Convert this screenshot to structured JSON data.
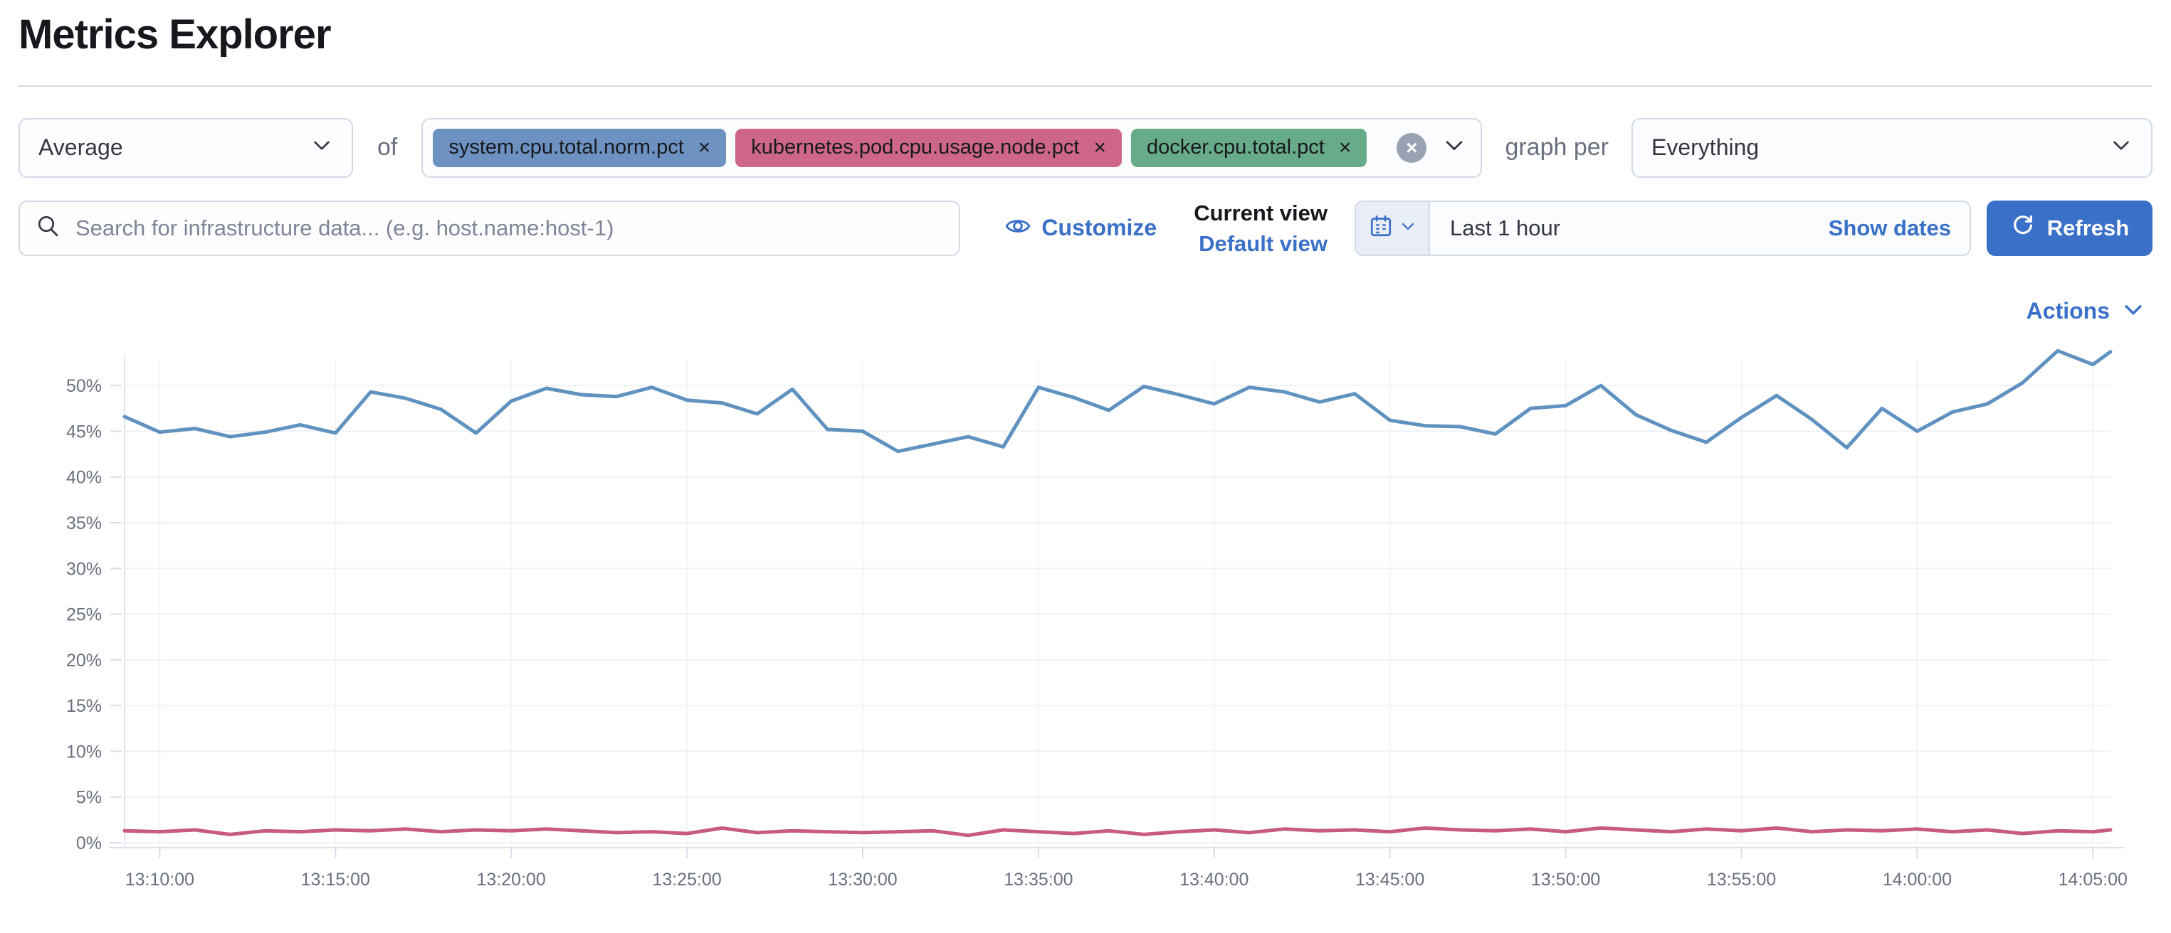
{
  "page": {
    "title": "Metrics Explorer"
  },
  "toolbar": {
    "aggregation": {
      "value": "Average"
    },
    "of_label": "of",
    "metrics": [
      {
        "label": "system.cpu.total.norm.pct",
        "color": "#6d92c1"
      },
      {
        "label": "kubernetes.pod.cpu.usage.node.pct",
        "color": "#ce6787"
      },
      {
        "label": "docker.cpu.total.pct",
        "color": "#67ab8a"
      }
    ],
    "clear_symbol": "x",
    "graph_per_label": "graph per",
    "group_by": {
      "value": "Everything"
    }
  },
  "search": {
    "placeholder": "Search for infrastructure data... (e.g. host.name:host-1)"
  },
  "view_controls": {
    "customize_label": "Customize",
    "current_view_label": "Current view",
    "view_name": "Default view"
  },
  "time_picker": {
    "range_label": "Last 1 hour",
    "show_dates_label": "Show dates",
    "refresh_label": "Refresh"
  },
  "actions_label": "Actions",
  "colors": {
    "link_blue": "#3a70c8",
    "border": "#d3dae6",
    "axis_text": "#69707d"
  },
  "chart_data": {
    "type": "line",
    "title": "",
    "xlabel": "",
    "ylabel": "",
    "grid": true,
    "legend": "none",
    "ylim": [
      0,
      55.8
    ],
    "y_tick_values": [
      0,
      5,
      10,
      15,
      20,
      25,
      30,
      35,
      40,
      45,
      50
    ],
    "y_tick_labels": [
      "0%",
      "5%",
      "10%",
      "15%",
      "20%",
      "25%",
      "30%",
      "35%",
      "40%",
      "45%",
      "50%"
    ],
    "x_ticks": [
      {
        "label": "13:10:00",
        "offset": 1
      },
      {
        "label": "13:15:00",
        "offset": 6
      },
      {
        "label": "13:20:00",
        "offset": 11
      },
      {
        "label": "13:25:00",
        "offset": 16
      },
      {
        "label": "13:30:00",
        "offset": 21
      },
      {
        "label": "13:35:00",
        "offset": 26
      },
      {
        "label": "13:40:00",
        "offset": 31
      },
      {
        "label": "13:45:00",
        "offset": 36
      },
      {
        "label": "13:50:00",
        "offset": 41
      },
      {
        "label": "13:55:00",
        "offset": 46
      },
      {
        "label": "14:00:00",
        "offset": 51
      },
      {
        "label": "14:05:00",
        "offset": 56
      }
    ],
    "x_offsets_minutes": [
      0,
      1,
      2,
      3,
      4,
      5,
      6,
      7,
      8,
      9,
      10,
      11,
      12,
      13,
      14,
      15,
      16,
      17,
      18,
      19,
      20,
      21,
      22,
      23,
      24,
      25,
      26,
      27,
      28,
      29,
      30,
      31,
      32,
      33,
      34,
      35,
      36,
      37,
      38,
      39,
      40,
      41,
      42,
      43,
      44,
      45,
      46,
      47,
      48,
      49,
      50,
      51,
      52,
      53,
      54,
      55,
      56,
      56.5
    ],
    "series": [
      {
        "name": "system.cpu.total.norm.pct (avg %)",
        "color": "#6092c0",
        "values": [
          46.6,
          44.9,
          45.3,
          44.4,
          44.9,
          45.7,
          44.8,
          49.3,
          48.6,
          47.4,
          44.8,
          48.3,
          49.7,
          49.0,
          48.8,
          49.8,
          48.4,
          48.1,
          46.9,
          49.6,
          45.2,
          45.0,
          42.8,
          43.6,
          44.4,
          43.3,
          49.8,
          48.7,
          47.3,
          49.9,
          49.0,
          48.0,
          49.8,
          49.3,
          48.2,
          49.1,
          46.2,
          45.6,
          45.5,
          44.7,
          47.5,
          47.8,
          50.0,
          46.8,
          45.1,
          43.8,
          46.5,
          48.9,
          46.3,
          43.2,
          47.5,
          45.0,
          47.1,
          48.0,
          50.3,
          53.8,
          52.3,
          53.7
        ]
      },
      {
        "name": "kubernetes.pod.cpu.usage.node.pct (avg %)",
        "color": "#c75b80",
        "values": [
          1.3,
          1.2,
          1.4,
          0.9,
          1.3,
          1.2,
          1.4,
          1.3,
          1.5,
          1.2,
          1.4,
          1.3,
          1.5,
          1.3,
          1.1,
          1.2,
          1.0,
          1.6,
          1.1,
          1.3,
          1.2,
          1.1,
          1.2,
          1.3,
          0.8,
          1.4,
          1.2,
          1.0,
          1.3,
          0.9,
          1.2,
          1.4,
          1.1,
          1.5,
          1.3,
          1.4,
          1.2,
          1.6,
          1.4,
          1.3,
          1.5,
          1.2,
          1.6,
          1.4,
          1.2,
          1.5,
          1.3,
          1.6,
          1.2,
          1.4,
          1.3,
          1.5,
          1.2,
          1.4,
          1.0,
          1.3,
          1.2,
          1.4
        ]
      }
    ]
  }
}
